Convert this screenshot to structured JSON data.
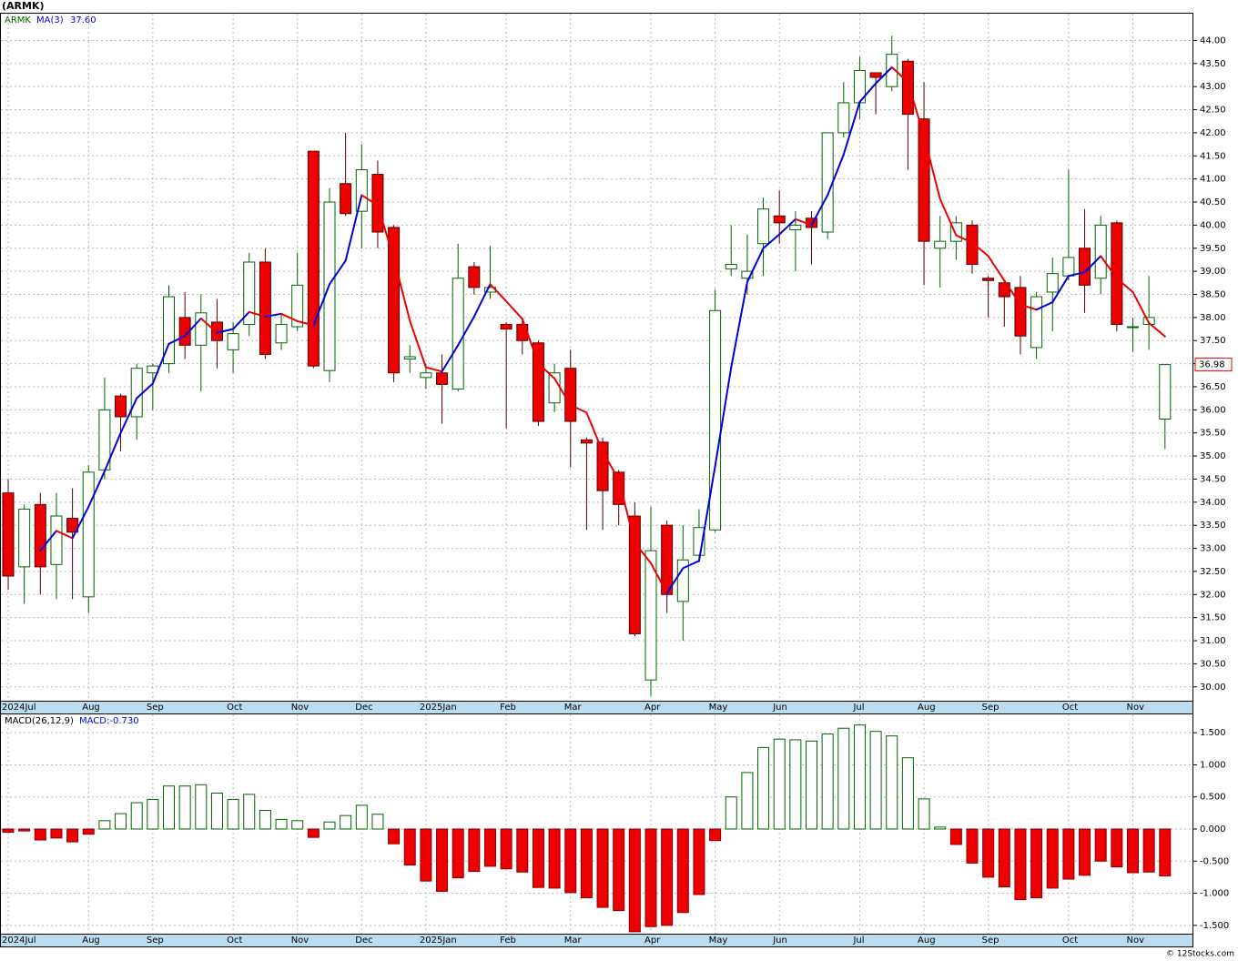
{
  "chart_data": [
    {
      "type": "candlestick",
      "title": "(ARMK)",
      "symbol": "ARMK",
      "categories": [
        "2024Jul",
        null,
        null,
        null,
        null,
        "Aug",
        null,
        null,
        null,
        "Sep",
        null,
        null,
        null,
        null,
        "Oct",
        null,
        null,
        null,
        "Nov",
        null,
        null,
        null,
        "Dec",
        null,
        null,
        null,
        "2025Jan",
        null,
        null,
        null,
        null,
        "Feb",
        null,
        null,
        null,
        "Mar",
        null,
        null,
        null,
        null,
        "Apr",
        null,
        null,
        null,
        "May",
        null,
        null,
        null,
        "Jun",
        null,
        null,
        null,
        null,
        "Jul",
        null,
        null,
        null,
        "Aug",
        null,
        null,
        null,
        "Sep",
        null,
        null,
        null,
        null,
        "Oct",
        null,
        null,
        null,
        "Nov",
        null,
        null
      ],
      "open": [
        34.2,
        32.6,
        33.95,
        32.65,
        33.65,
        31.95,
        34.7,
        36.3,
        35.85,
        36.8,
        37.0,
        38.0,
        37.4,
        37.9,
        37.3,
        37.85,
        39.2,
        37.45,
        37.8,
        41.6,
        36.85,
        40.9,
        40.3,
        41.1,
        39.95,
        37.1,
        36.7,
        36.8,
        36.45,
        39.1,
        38.55,
        37.85,
        37.85,
        37.45,
        36.15,
        36.9,
        35.35,
        35.3,
        34.65,
        33.7,
        30.15,
        33.5,
        31.85,
        32.85,
        33.4,
        39.05,
        38.85,
        39.6,
        40.2,
        39.9,
        40.15,
        39.85,
        42.0,
        42.65,
        43.3,
        43.0,
        43.55,
        42.3,
        39.5,
        39.65,
        40.0,
        38.85,
        38.75,
        38.65,
        37.35,
        38.55,
        38.9,
        39.5,
        38.85,
        40.05,
        37.78,
        37.85,
        35.8
      ],
      "high": [
        34.5,
        33.95,
        34.2,
        34.2,
        34.3,
        34.8,
        36.7,
        36.35,
        37.0,
        37.0,
        38.7,
        38.55,
        38.5,
        38.4,
        37.9,
        39.4,
        39.5,
        38.1,
        39.4,
        41.6,
        40.8,
        42.0,
        41.75,
        41.4,
        40.0,
        37.4,
        37.0,
        37.2,
        39.6,
        39.2,
        39.55,
        37.9,
        38.0,
        37.5,
        37.0,
        37.3,
        35.4,
        35.4,
        34.7,
        34.0,
        33.9,
        33.6,
        33.5,
        33.85,
        38.6,
        40.0,
        39.8,
        40.6,
        40.75,
        40.3,
        40.3,
        42.0,
        43.1,
        43.65,
        43.3,
        44.1,
        43.6,
        43.1,
        40.2,
        40.2,
        40.1,
        38.9,
        38.8,
        38.9,
        38.55,
        39.3,
        41.2,
        40.35,
        40.2,
        40.1,
        38.0,
        38.9,
        36.98
      ],
      "low": [
        32.1,
        31.8,
        32.0,
        31.9,
        31.9,
        31.6,
        34.5,
        35.1,
        35.35,
        36.0,
        36.8,
        37.1,
        36.4,
        36.9,
        36.8,
        37.6,
        37.1,
        37.3,
        37.7,
        36.9,
        36.6,
        40.2,
        39.5,
        39.5,
        36.6,
        36.8,
        36.45,
        35.7,
        36.4,
        38.5,
        38.4,
        35.6,
        37.2,
        35.65,
        35.95,
        34.75,
        33.4,
        33.4,
        33.5,
        31.1,
        29.8,
        31.6,
        31.0,
        32.7,
        33.35,
        38.9,
        38.5,
        38.9,
        39.6,
        39.0,
        39.15,
        39.7,
        41.9,
        42.3,
        42.4,
        42.9,
        41.2,
        38.7,
        38.65,
        39.25,
        38.95,
        38.0,
        37.8,
        37.2,
        37.1,
        37.7,
        38.8,
        38.1,
        38.5,
        37.7,
        37.25,
        37.3,
        35.15
      ],
      "close": [
        32.4,
        33.85,
        32.6,
        33.7,
        33.35,
        34.65,
        36.0,
        35.85,
        36.9,
        36.95,
        38.45,
        37.4,
        38.1,
        37.5,
        37.65,
        39.2,
        37.2,
        37.85,
        38.7,
        36.95,
        40.5,
        40.25,
        41.2,
        39.85,
        36.8,
        37.15,
        36.8,
        36.55,
        38.85,
        38.65,
        38.65,
        37.75,
        37.5,
        35.75,
        36.8,
        35.75,
        35.28,
        34.25,
        33.95,
        31.15,
        32.95,
        32.0,
        32.75,
        33.45,
        38.15,
        39.15,
        39.0,
        40.35,
        40.05,
        40.0,
        39.95,
        42.0,
        42.65,
        43.35,
        43.2,
        43.7,
        42.4,
        39.65,
        39.65,
        40.05,
        39.15,
        38.8,
        38.45,
        37.6,
        38.45,
        38.95,
        39.3,
        38.7,
        40.0,
        37.85,
        37.8,
        38.0,
        36.98
      ],
      "last_label": "36.98",
      "up_color": "#006400",
      "down_color": "#ee0000",
      "ma": {
        "name": "MA(3)",
        "label": "37.60",
        "up_color": "#0000dd",
        "down_color": "#ee0000",
        "values": [
          null,
          null,
          32.95,
          33.38,
          33.22,
          33.9,
          34.67,
          35.5,
          36.25,
          36.57,
          37.43,
          37.6,
          37.98,
          37.67,
          37.75,
          38.12,
          38.02,
          38.08,
          37.92,
          37.83,
          38.72,
          39.23,
          40.65,
          40.43,
          39.28,
          37.93,
          36.92,
          36.83,
          37.4,
          38.02,
          38.72,
          38.35,
          37.97,
          37.0,
          36.68,
          36.1,
          35.94,
          35.09,
          34.49,
          33.12,
          32.68,
          32.03,
          32.57,
          32.73,
          34.78,
          36.92,
          38.77,
          39.5,
          39.8,
          40.13,
          40.0,
          40.65,
          41.53,
          42.67,
          43.07,
          43.42,
          43.1,
          41.92,
          40.57,
          39.78,
          39.62,
          39.33,
          38.8,
          38.28,
          38.17,
          38.33,
          38.9,
          38.98,
          39.33,
          38.85,
          38.55,
          37.88,
          37.59
        ]
      },
      "ylim": [
        29.7,
        44.6
      ],
      "yticks": [
        {
          "value": 30,
          "label": "30.00"
        },
        {
          "value": 30.5,
          "label": "30.50"
        },
        {
          "value": 31,
          "label": "31.00"
        },
        {
          "value": 31.5,
          "label": "31.50"
        },
        {
          "value": 32,
          "label": "32.00"
        },
        {
          "value": 32.5,
          "label": "32.50"
        },
        {
          "value": 33,
          "label": "33.00"
        },
        {
          "value": 33.5,
          "label": "33.50"
        },
        {
          "value": 34,
          "label": "34.00"
        },
        {
          "value": 34.5,
          "label": "34.50"
        },
        {
          "value": 35,
          "label": "35.00"
        },
        {
          "value": 35.5,
          "label": "35.50"
        },
        {
          "value": 36,
          "label": "36.00"
        },
        {
          "value": 36.5,
          "label": "36.50"
        },
        {
          "value": 37,
          "label": "37.00"
        },
        {
          "value": 37.5,
          "label": "37.50"
        },
        {
          "value": 38,
          "label": "38.00"
        },
        {
          "value": 38.5,
          "label": "38.50"
        },
        {
          "value": 39,
          "label": "39.00"
        },
        {
          "value": 39.5,
          "label": "39.50"
        },
        {
          "value": 40,
          "label": "40.00"
        },
        {
          "value": 40.5,
          "label": "40.50"
        },
        {
          "value": 41,
          "label": "41.00"
        },
        {
          "value": 41.5,
          "label": "41.50"
        },
        {
          "value": 42,
          "label": "42.00"
        },
        {
          "value": 42.5,
          "label": "42.50"
        },
        {
          "value": 43,
          "label": "43.00"
        },
        {
          "value": 43.5,
          "label": "43.50"
        },
        {
          "value": 44,
          "label": "44.00"
        }
      ],
      "grid": true
    },
    {
      "type": "bar",
      "name": "MACD(26,12,9)",
      "value_text": "MACD:-0.730",
      "categories": [
        "2024Jul",
        null,
        null,
        null,
        null,
        "Aug",
        null,
        null,
        null,
        "Sep",
        null,
        null,
        null,
        null,
        "Oct",
        null,
        null,
        null,
        "Nov",
        null,
        null,
        null,
        "Dec",
        null,
        null,
        null,
        "2025Jan",
        null,
        null,
        null,
        null,
        "Feb",
        null,
        null,
        null,
        "Mar",
        null,
        null,
        null,
        null,
        "Apr",
        null,
        null,
        null,
        "May",
        null,
        null,
        null,
        "Jun",
        null,
        null,
        null,
        null,
        "Jul",
        null,
        null,
        null,
        "Aug",
        null,
        null,
        null,
        "Sep",
        null,
        null,
        null,
        null,
        "Oct",
        null,
        null,
        null,
        "Nov",
        null,
        null
      ],
      "values": [
        -0.05,
        -0.03,
        -0.17,
        -0.14,
        -0.2,
        -0.08,
        0.13,
        0.24,
        0.41,
        0.46,
        0.67,
        0.67,
        0.69,
        0.56,
        0.46,
        0.54,
        0.29,
        0.15,
        0.13,
        -0.13,
        0.11,
        0.21,
        0.37,
        0.23,
        -0.23,
        -0.56,
        -0.81,
        -0.97,
        -0.76,
        -0.66,
        -0.58,
        -0.62,
        -0.67,
        -0.91,
        -0.92,
        -0.99,
        -1.07,
        -1.22,
        -1.27,
        -1.6,
        -1.52,
        -1.5,
        -1.3,
        -1.02,
        -0.18,
        0.5,
        0.88,
        1.27,
        1.4,
        1.39,
        1.37,
        1.48,
        1.57,
        1.62,
        1.52,
        1.45,
        1.11,
        0.47,
        0.03,
        -0.24,
        -0.53,
        -0.75,
        -0.9,
        -1.1,
        -1.07,
        -0.92,
        -0.78,
        -0.72,
        -0.5,
        -0.59,
        -0.68,
        -0.67,
        -0.73
      ],
      "up_color": "#006400",
      "down_color": "#ee0000",
      "ylim": [
        -1.63,
        1.8
      ],
      "yticks": [
        {
          "value": 1.5,
          "label": "1.500"
        },
        {
          "value": 1,
          "label": "1.000"
        },
        {
          "value": 0.5,
          "label": "0.500"
        },
        {
          "value": 0,
          "label": "0.000"
        },
        {
          "value": -0.5,
          "label": "-0.500"
        },
        {
          "value": -1,
          "label": "-1.000"
        },
        {
          "value": -1.5,
          "label": "-1.500"
        }
      ],
      "grid": true
    }
  ],
  "footer": "© 12Stocks.com"
}
